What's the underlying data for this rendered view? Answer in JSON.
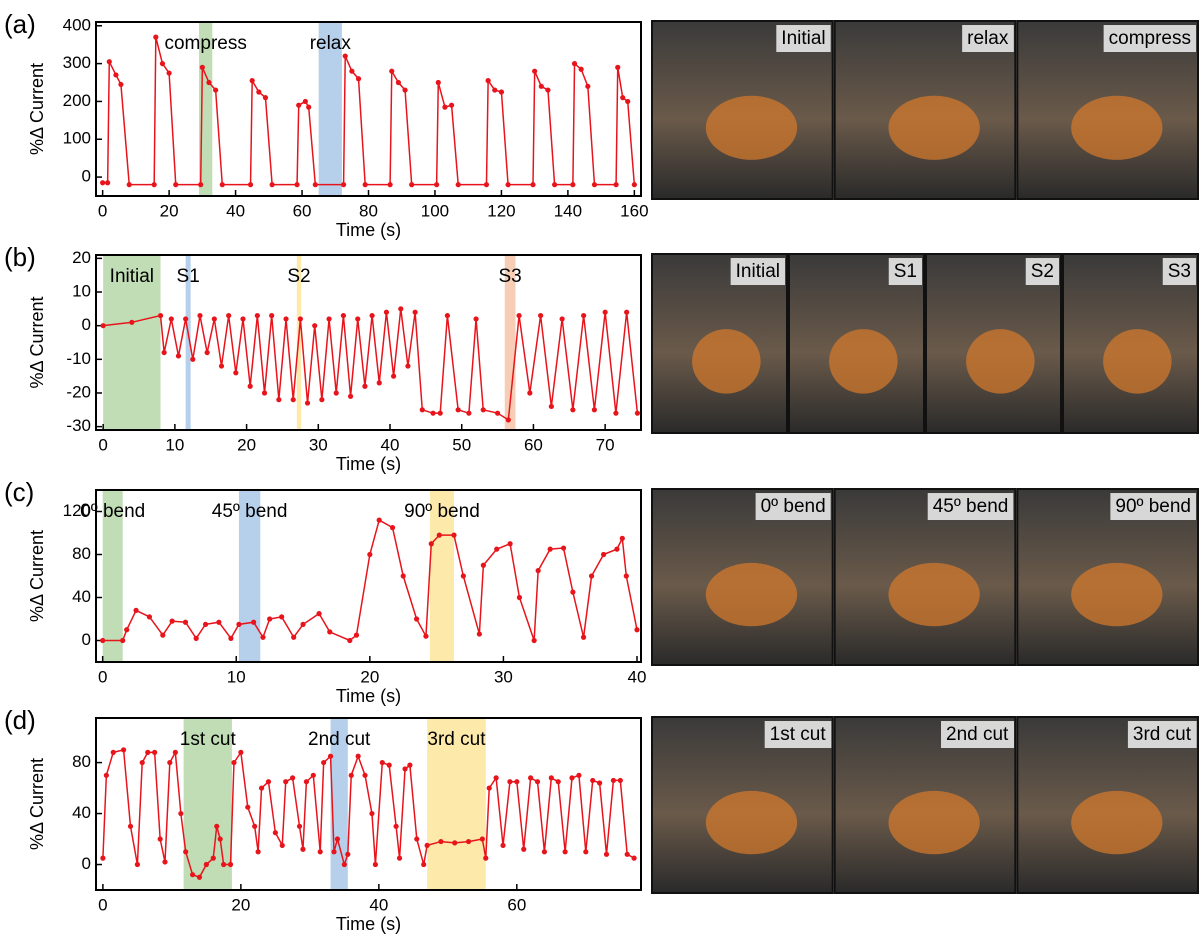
{
  "chart_data": [
    {
      "type": "line",
      "panel": "(a)",
      "xlabel": "Time (s)",
      "ylabel": "%Δ Current",
      "color": "#e8141c",
      "xlim": [
        -2,
        162
      ],
      "ylim": [
        -50,
        410
      ],
      "xticks": [
        0,
        20,
        40,
        60,
        80,
        100,
        120,
        140,
        160
      ],
      "yticks": [
        0,
        100,
        200,
        300,
        400
      ],
      "x": [
        0,
        1.5,
        2,
        4,
        5.5,
        8,
        15.5,
        16,
        18,
        20,
        22,
        29.5,
        30,
        32,
        34,
        36,
        44.5,
        45,
        47,
        49,
        51,
        58.5,
        59,
        61,
        62,
        64,
        72.5,
        73,
        75,
        77,
        79,
        86.5,
        87,
        89,
        91,
        93,
        100.5,
        101,
        103,
        105,
        107,
        115.5,
        116,
        118,
        120,
        122,
        129.5,
        130,
        132,
        134,
        136,
        141.5,
        142,
        144,
        146,
        148,
        154.5,
        155,
        156.5,
        158,
        160
      ],
      "values": [
        -15,
        -15,
        305,
        270,
        245,
        -20,
        -20,
        370,
        300,
        275,
        -20,
        -20,
        290,
        250,
        230,
        -20,
        -20,
        255,
        225,
        210,
        -20,
        -20,
        190,
        200,
        185,
        -20,
        -20,
        320,
        280,
        260,
        -20,
        -20,
        280,
        250,
        230,
        -20,
        -20,
        250,
        185,
        190,
        -20,
        -20,
        255,
        230,
        225,
        -20,
        -20,
        280,
        240,
        230,
        -20,
        -20,
        300,
        285,
        240,
        -20,
        -20,
        290,
        210,
        200,
        -20
      ],
      "bands": [
        {
          "label": "compress",
          "start": 29,
          "end": 33,
          "color": "#b5d7a8"
        },
        {
          "label": "relax",
          "start": 65,
          "end": 72,
          "color": "#a9c8e8"
        }
      ],
      "photo_labels": [
        "Initial",
        "relax",
        "compress"
      ]
    },
    {
      "type": "line",
      "panel": "(b)",
      "xlabel": "Time (s)",
      "ylabel": "%Δ Current",
      "color": "#e8141c",
      "xlim": [
        -1,
        75
      ],
      "ylim": [
        -31,
        21
      ],
      "xticks": [
        0,
        10,
        20,
        30,
        40,
        50,
        60,
        70
      ],
      "yticks": [
        -30,
        -20,
        -10,
        0,
        10,
        20
      ],
      "x": [
        0,
        4,
        8,
        8.5,
        9.5,
        10.5,
        11.5,
        12.5,
        13.5,
        14.5,
        15.5,
        16.5,
        17.5,
        18.5,
        19.5,
        20.5,
        21.5,
        22.5,
        23.5,
        24.5,
        25.5,
        26.5,
        27.5,
        28.5,
        29.5,
        30.5,
        31.5,
        32.5,
        33.5,
        34.5,
        35.5,
        36.5,
        37.5,
        38.5,
        39.5,
        40.5,
        41.5,
        42.5,
        43.5,
        44.5,
        46,
        47,
        48,
        49.5,
        51,
        52,
        53,
        55,
        56.5,
        58,
        59.5,
        61,
        62.5,
        64,
        65.5,
        67,
        68.5,
        70,
        71.5,
        73,
        74.5
      ],
      "values": [
        0,
        1,
        3,
        -8,
        2,
        -9,
        2,
        -10,
        3,
        -8,
        2,
        -12,
        3,
        -14,
        2,
        -18,
        3,
        -20,
        3,
        -22,
        2,
        -22,
        2,
        -23,
        0,
        -22,
        2,
        -20,
        3,
        -21,
        2,
        -18,
        3,
        -17,
        4,
        -15,
        5,
        -12,
        4,
        -25,
        -26,
        -26,
        3,
        -25,
        -26,
        2,
        -25,
        -26,
        -28,
        3,
        -20,
        3,
        -24,
        2,
        -25,
        3,
        -25,
        4,
        -26,
        4,
        -26
      ],
      "bands": [
        {
          "label": "Initial",
          "start": 0,
          "end": 8,
          "color": "#b5d7a8"
        },
        {
          "label": "S1",
          "start": 11.5,
          "end": 12.2,
          "color": "#a9c8e8"
        },
        {
          "label": "S2",
          "start": 27,
          "end": 27.6,
          "color": "#fde59a"
        },
        {
          "label": "S3",
          "start": 56,
          "end": 57.5,
          "color": "#f6c6a8"
        }
      ],
      "photo_labels": [
        "Initial",
        "S1",
        "S2",
        "S3"
      ]
    },
    {
      "type": "line",
      "panel": "(c)",
      "xlabel": "Time (s)",
      "ylabel": "%Δ Current",
      "color": "#e8141c",
      "xlim": [
        -0.5,
        40.3
      ],
      "ylim": [
        -20,
        140
      ],
      "xticks": [
        0,
        10,
        20,
        30,
        40
      ],
      "yticks": [
        0,
        40,
        80,
        120
      ],
      "x": [
        0,
        1.5,
        1.8,
        2.5,
        3.5,
        4.5,
        5.2,
        6.2,
        7,
        7.7,
        8.7,
        9.6,
        10.2,
        11.3,
        12,
        12.5,
        13.4,
        14.3,
        15,
        16.2,
        17,
        18.5,
        19,
        20,
        20.7,
        21.7,
        22.5,
        23.5,
        24.2,
        24.6,
        25.2,
        26.3,
        27,
        28.2,
        28.5,
        29.5,
        30.5,
        31.2,
        32.3,
        32.6,
        33.5,
        34.5,
        35.2,
        36,
        36.6,
        37.5,
        38.5,
        38.9,
        39.2,
        40
      ],
      "values": [
        0,
        0,
        10,
        28,
        22,
        5,
        18,
        17,
        2,
        15,
        17,
        2,
        15,
        17,
        3,
        20,
        22,
        3,
        15,
        25,
        8,
        0,
        5,
        80,
        112,
        105,
        60,
        20,
        4,
        90,
        98,
        98,
        60,
        6,
        70,
        85,
        90,
        40,
        0,
        65,
        85,
        86,
        45,
        3,
        60,
        80,
        85,
        95,
        60,
        10
      ],
      "bands": [
        {
          "label": "0º bend",
          "start": 0,
          "end": 1.5,
          "color": "#b5d7a8"
        },
        {
          "label": "45º bend",
          "start": 10.2,
          "end": 11.8,
          "color": "#a9c8e8"
        },
        {
          "label": "90º bend",
          "start": 24.5,
          "end": 26.3,
          "color": "#fde59a"
        }
      ],
      "photo_labels": [
        "0º bend",
        "45º bend",
        "90º bend"
      ]
    },
    {
      "type": "line",
      "panel": "(d)",
      "xlabel": "Time (s)",
      "ylabel": "%Δ Current",
      "color": "#e8141c",
      "xlim": [
        -1,
        78
      ],
      "ylim": [
        -20,
        115
      ],
      "xticks": [
        0,
        20,
        40,
        60
      ],
      "yticks": [
        0,
        40,
        80
      ],
      "x": [
        0,
        0.5,
        1.5,
        3,
        4,
        5,
        5.7,
        6.5,
        7.5,
        8.3,
        9,
        9.7,
        10.5,
        11.3,
        12,
        13,
        14,
        15,
        16,
        16.5,
        17,
        17.5,
        18.5,
        19,
        20,
        21,
        22,
        22.5,
        23,
        24,
        25,
        26,
        26.5,
        27.5,
        28.5,
        29,
        29.5,
        30.5,
        31.5,
        32,
        33,
        33.5,
        34,
        35,
        35.5,
        36,
        37,
        38,
        39,
        39.5,
        40.5,
        41.5,
        42.5,
        43,
        43.8,
        44.5,
        45.5,
        46.5,
        47,
        49,
        51,
        53,
        55,
        55.5,
        56,
        57,
        58,
        59,
        60,
        61,
        62,
        63,
        64,
        65,
        66,
        67,
        68,
        69,
        70,
        71,
        72,
        73,
        74,
        75,
        76,
        77
      ],
      "values": [
        5,
        70,
        88,
        90,
        30,
        0,
        80,
        88,
        88,
        20,
        2,
        80,
        88,
        40,
        10,
        -8,
        -10,
        0,
        5,
        30,
        20,
        0,
        0,
        80,
        88,
        45,
        30,
        10,
        60,
        65,
        25,
        15,
        65,
        68,
        30,
        12,
        65,
        70,
        10,
        80,
        85,
        10,
        20,
        0,
        8,
        70,
        85,
        70,
        40,
        0,
        80,
        78,
        30,
        5,
        75,
        78,
        20,
        0,
        15,
        18,
        17,
        18,
        20,
        5,
        60,
        68,
        15,
        65,
        65,
        12,
        68,
        65,
        10,
        68,
        65,
        10,
        68,
        70,
        10,
        66,
        64,
        8,
        66,
        66,
        8,
        5
      ],
      "bands": [
        {
          "label": "1st cut",
          "start": 11.7,
          "end": 18.7,
          "color": "#b5d7a8"
        },
        {
          "label": "2nd cut",
          "start": 33,
          "end": 35.5,
          "color": "#a9c8e8"
        },
        {
          "label": "3rd cut",
          "start": 47,
          "end": 55.5,
          "color": "#fde59a"
        }
      ],
      "photo_labels": [
        "1st cut",
        "2nd cut",
        "3rd cut"
      ]
    }
  ]
}
